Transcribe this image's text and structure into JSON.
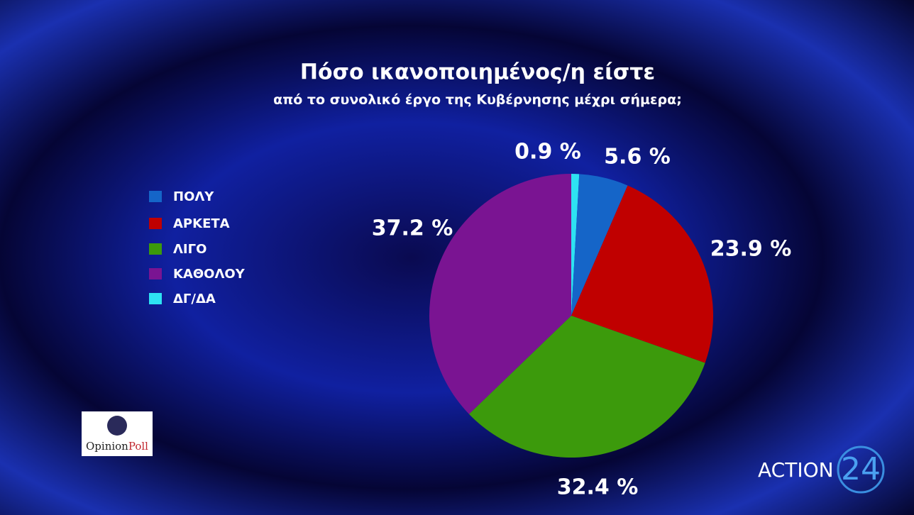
{
  "chart_data": {
    "type": "pie",
    "title": "Πόσο ικανοποιημένος/η είστε",
    "subtitle": "από το συνολικό έργο της Κυβέρνησης μέχρι σήμερα;",
    "categories": [
      "ΠΟΛΥ",
      "ΑΡΚΕΤΑ",
      "ΛΙΓΟ",
      "ΚΑΘΟΛΟΥ",
      "ΔΓ/ΔΑ"
    ],
    "values": [
      5.6,
      23.9,
      32.4,
      37.2,
      0.9
    ],
    "value_labels": [
      "5.6 %",
      "23.9 %",
      "32.4 %",
      "37.2 %",
      "0.9 %"
    ],
    "colors": [
      "#1565c8",
      "#c00000",
      "#3c9a0c",
      "#7a1492",
      "#2ee2f2"
    ]
  },
  "logos": {
    "pollster": [
      "Opinion",
      "Poll"
    ],
    "channel": [
      "ACTION",
      "24"
    ]
  }
}
